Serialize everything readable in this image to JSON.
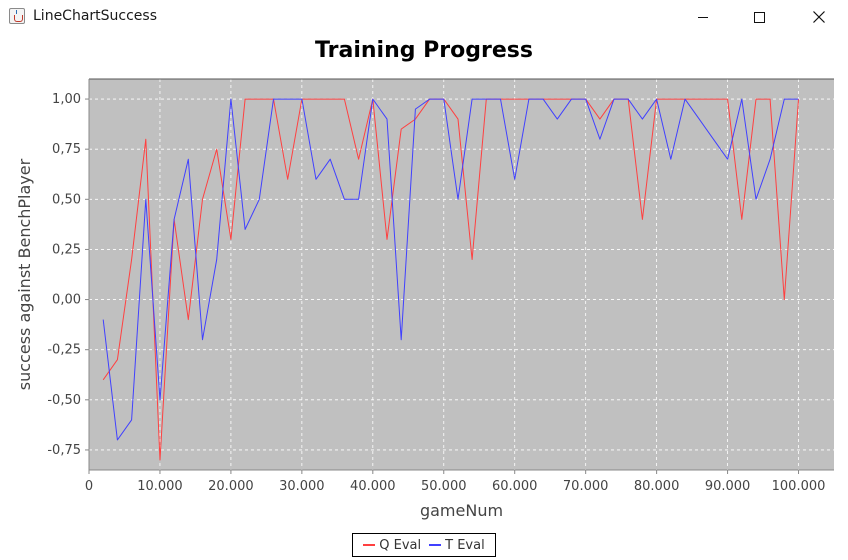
{
  "window": {
    "title": "LineChartSuccess",
    "icon": "java-cup-icon",
    "controls": [
      "minimize-icon",
      "maximize-icon",
      "close-icon"
    ]
  },
  "chart_data": {
    "type": "line",
    "title": "Training Progress",
    "xlabel": "gameNum",
    "ylabel": "success against BenchPlayer",
    "xlim": [
      0,
      105000
    ],
    "ylim": [
      -0.85,
      1.1
    ],
    "grid": true,
    "legend_position": "bottom-center",
    "background": "#c0c0c0",
    "x_ticks": [
      0,
      10000,
      20000,
      30000,
      40000,
      50000,
      60000,
      70000,
      80000,
      90000,
      100000
    ],
    "x_tick_labels": [
      "0",
      "10.000",
      "20.000",
      "30.000",
      "40.000",
      "50.000",
      "60.000",
      "70.000",
      "80.000",
      "90.000",
      "100.000"
    ],
    "y_ticks": [
      -0.75,
      -0.5,
      -0.25,
      0,
      0.25,
      0.5,
      0.75,
      1.0
    ],
    "y_tick_labels": [
      "-0,75",
      "-0,50",
      "-0,25",
      "0,00",
      "0,25",
      "0,50",
      "0,75",
      "1,00"
    ],
    "series": [
      {
        "name": "Q Eval",
        "color": "#ff4040",
        "x": [
          2000,
          4000,
          6000,
          8000,
          10000,
          12000,
          14000,
          16000,
          18000,
          20000,
          22000,
          24000,
          26000,
          28000,
          30000,
          32000,
          34000,
          36000,
          38000,
          40000,
          42000,
          44000,
          46000,
          48000,
          50000,
          52000,
          54000,
          56000,
          58000,
          60000,
          62000,
          64000,
          66000,
          68000,
          70000,
          72000,
          74000,
          76000,
          78000,
          80000,
          82000,
          84000,
          86000,
          88000,
          90000,
          92000,
          94000,
          96000,
          98000,
          100000
        ],
        "y": [
          -0.4,
          -0.3,
          0.2,
          0.8,
          -0.8,
          0.4,
          -0.1,
          0.5,
          0.75,
          0.3,
          1.0,
          1.0,
          1.0,
          0.6,
          1.0,
          1.0,
          1.0,
          1.0,
          0.7,
          1.0,
          0.3,
          0.85,
          0.9,
          1.0,
          1.0,
          0.9,
          0.2,
          1.0,
          1.0,
          1.0,
          1.0,
          1.0,
          1.0,
          1.0,
          1.0,
          0.9,
          1.0,
          1.0,
          0.4,
          1.0,
          1.0,
          1.0,
          1.0,
          1.0,
          1.0,
          0.4,
          1.0,
          1.0,
          0.0,
          1.0
        ]
      },
      {
        "name": "T Eval",
        "color": "#4040ff",
        "x": [
          2000,
          4000,
          6000,
          8000,
          10000,
          12000,
          14000,
          16000,
          18000,
          20000,
          22000,
          24000,
          26000,
          28000,
          30000,
          32000,
          34000,
          36000,
          38000,
          40000,
          42000,
          44000,
          46000,
          48000,
          50000,
          52000,
          54000,
          56000,
          58000,
          60000,
          62000,
          64000,
          66000,
          68000,
          70000,
          72000,
          74000,
          76000,
          78000,
          80000,
          82000,
          84000,
          86000,
          88000,
          90000,
          92000,
          94000,
          96000,
          98000,
          100000
        ],
        "y": [
          -0.1,
          -0.7,
          -0.6,
          0.5,
          -0.5,
          0.4,
          0.7,
          -0.2,
          0.2,
          1.0,
          0.35,
          0.5,
          1.0,
          1.0,
          1.0,
          0.6,
          0.7,
          0.5,
          0.5,
          1.0,
          0.9,
          -0.2,
          0.95,
          1.0,
          1.0,
          0.5,
          1.0,
          1.0,
          1.0,
          0.6,
          1.0,
          1.0,
          0.9,
          1.0,
          1.0,
          0.8,
          1.0,
          1.0,
          0.9,
          1.0,
          0.7,
          1.0,
          0.9,
          0.8,
          0.7,
          1.0,
          0.5,
          0.7,
          1.0,
          1.0
        ]
      }
    ]
  }
}
